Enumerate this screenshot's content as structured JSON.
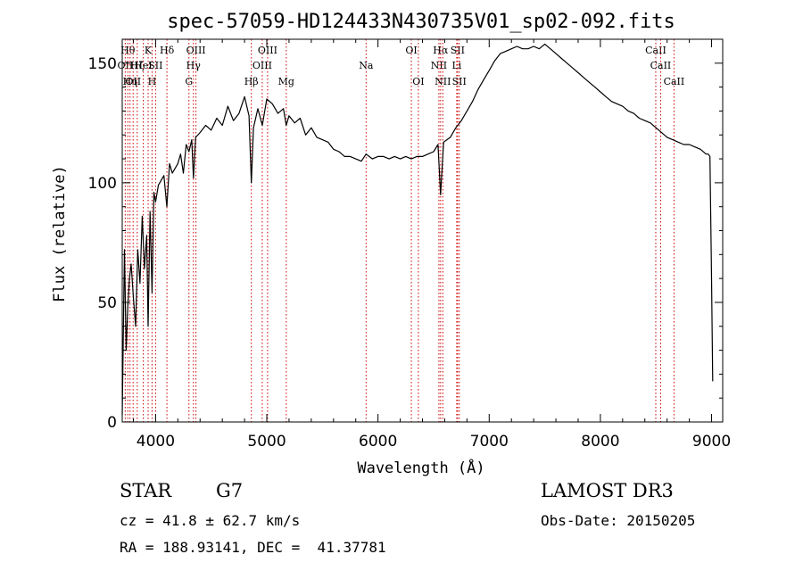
{
  "chart_data": {
    "type": "line",
    "title": "spec-57059-HD124433N430735V01_sp02-092.fits",
    "xlabel": "Wavelength (Å)",
    "ylabel": "Flux (relative)",
    "xlim": [
      3700,
      9100
    ],
    "ylim": [
      0,
      160
    ],
    "x_ticks": [
      4000,
      5000,
      6000,
      7000,
      8000,
      9000
    ],
    "y_ticks": [
      0,
      50,
      100,
      150
    ],
    "grid": false,
    "series": [
      {
        "name": "flux",
        "x": [
          3700,
          3720,
          3735,
          3750,
          3765,
          3780,
          3800,
          3820,
          3840,
          3860,
          3880,
          3900,
          3920,
          3933,
          3950,
          3968,
          3985,
          4000,
          4025,
          4050,
          4075,
          4101,
          4125,
          4150,
          4175,
          4200,
          4225,
          4250,
          4275,
          4300,
          4325,
          4340,
          4360,
          4400,
          4450,
          4500,
          4550,
          4600,
          4650,
          4700,
          4750,
          4800,
          4840,
          4861,
          4880,
          4920,
          4960,
          5000,
          5050,
          5100,
          5150,
          5175,
          5200,
          5250,
          5300,
          5350,
          5400,
          5450,
          5500,
          5550,
          5600,
          5650,
          5700,
          5750,
          5800,
          5850,
          5893,
          5950,
          6000,
          6050,
          6100,
          6150,
          6200,
          6250,
          6300,
          6350,
          6400,
          6450,
          6500,
          6540,
          6563,
          6590,
          6620,
          6650,
          6700,
          6750,
          6800,
          6850,
          6900,
          6950,
          7000,
          7050,
          7100,
          7150,
          7200,
          7250,
          7300,
          7350,
          7400,
          7450,
          7500,
          7550,
          7600,
          7650,
          7700,
          7750,
          7800,
          7850,
          7900,
          7950,
          8000,
          8050,
          8100,
          8150,
          8200,
          8250,
          8300,
          8350,
          8400,
          8450,
          8500,
          8550,
          8600,
          8650,
          8700,
          8750,
          8800,
          8850,
          8900,
          8950,
          8970,
          8985,
          9000,
          9010
        ],
        "values": [
          3,
          72,
          30,
          48,
          60,
          66,
          52,
          40,
          72,
          58,
          86,
          64,
          78,
          40,
          88,
          54,
          96,
          92,
          99,
          101,
          103,
          90,
          108,
          104,
          106,
          108,
          112,
          104,
          116,
          113,
          118,
          102,
          119,
          121,
          124,
          122,
          127,
          124,
          132,
          126,
          129,
          136,
          128,
          100,
          123,
          131,
          124,
          135,
          133,
          129,
          131,
          124,
          128,
          125,
          127,
          120,
          123,
          119,
          118,
          117,
          114,
          113,
          111,
          111,
          110,
          109,
          112,
          110,
          111,
          111,
          110,
          111,
          110,
          111,
          110,
          111,
          111,
          112,
          113,
          116,
          95,
          117,
          118,
          119,
          123,
          126,
          130,
          134,
          139,
          143,
          147,
          151,
          154,
          155,
          156,
          157,
          156,
          156,
          157,
          156,
          158,
          156,
          154,
          152,
          150,
          148,
          146,
          144,
          142,
          140,
          138,
          136,
          134,
          133,
          132,
          130,
          129,
          127,
          126,
          125,
          123,
          121,
          119,
          118,
          117,
          116,
          116,
          115,
          114,
          112,
          112,
          111,
          60,
          17
        ]
      }
    ],
    "vlines": [
      {
        "x": 3727,
        "label": "OII",
        "row": 1
      },
      {
        "x": 3750,
        "label": "Hθ",
        "row": 0
      },
      {
        "x": 3770,
        "label": "Hη",
        "row": 2
      },
      {
        "x": 3798,
        "label": "OII",
        "row": 2
      },
      {
        "x": 3835,
        "label": "Hζ",
        "row": 1
      },
      {
        "x": 3889,
        "label": "HeI",
        "row": 1
      },
      {
        "x": 3933,
        "label": "K",
        "row": 0
      },
      {
        "x": 3968,
        "label": "H",
        "row": 2
      },
      {
        "x": 4000,
        "label": "SII",
        "row": 1
      },
      {
        "x": 4102,
        "label": "Hδ",
        "row": 0
      },
      {
        "x": 4300,
        "label": "G",
        "row": 2
      },
      {
        "x": 4340,
        "label": "Hγ",
        "row": 1
      },
      {
        "x": 4363,
        "label": "OIII",
        "row": 0
      },
      {
        "x": 4861,
        "label": "Hβ",
        "row": 2
      },
      {
        "x": 4959,
        "label": "OIII",
        "row": 1
      },
      {
        "x": 5007,
        "label": "OIII",
        "row": 0
      },
      {
        "x": 5175,
        "label": "Mg",
        "row": 2
      },
      {
        "x": 5893,
        "label": "Na",
        "row": 1
      },
      {
        "x": 6300,
        "label": "OI",
        "row": 0
      },
      {
        "x": 6363,
        "label": "OI",
        "row": 2
      },
      {
        "x": 6548,
        "label": "NII",
        "row": 1
      },
      {
        "x": 6563,
        "label": "Hα",
        "row": 0
      },
      {
        "x": 6583,
        "label": "NII",
        "row": 2
      },
      {
        "x": 6708,
        "label": "Li",
        "row": 1
      },
      {
        "x": 6716,
        "label": "SII",
        "row": 0
      },
      {
        "x": 6731,
        "label": "SII",
        "row": 2
      },
      {
        "x": 8498,
        "label": "CaII",
        "row": 0
      },
      {
        "x": 8542,
        "label": "CaII",
        "row": 1
      },
      {
        "x": 8662,
        "label": "CaII",
        "row": 2
      }
    ],
    "line_color": "#000000",
    "vline_color": "#cc0000"
  },
  "info": {
    "object_class": "STAR",
    "subclass": "G7",
    "survey": "LAMOST DR3",
    "cz": "cz = 41.8 ± 62.7 km/s",
    "obs_date": "Obs-Date: 20150205",
    "coords": "RA = 188.93141, DEC =  41.37781"
  }
}
